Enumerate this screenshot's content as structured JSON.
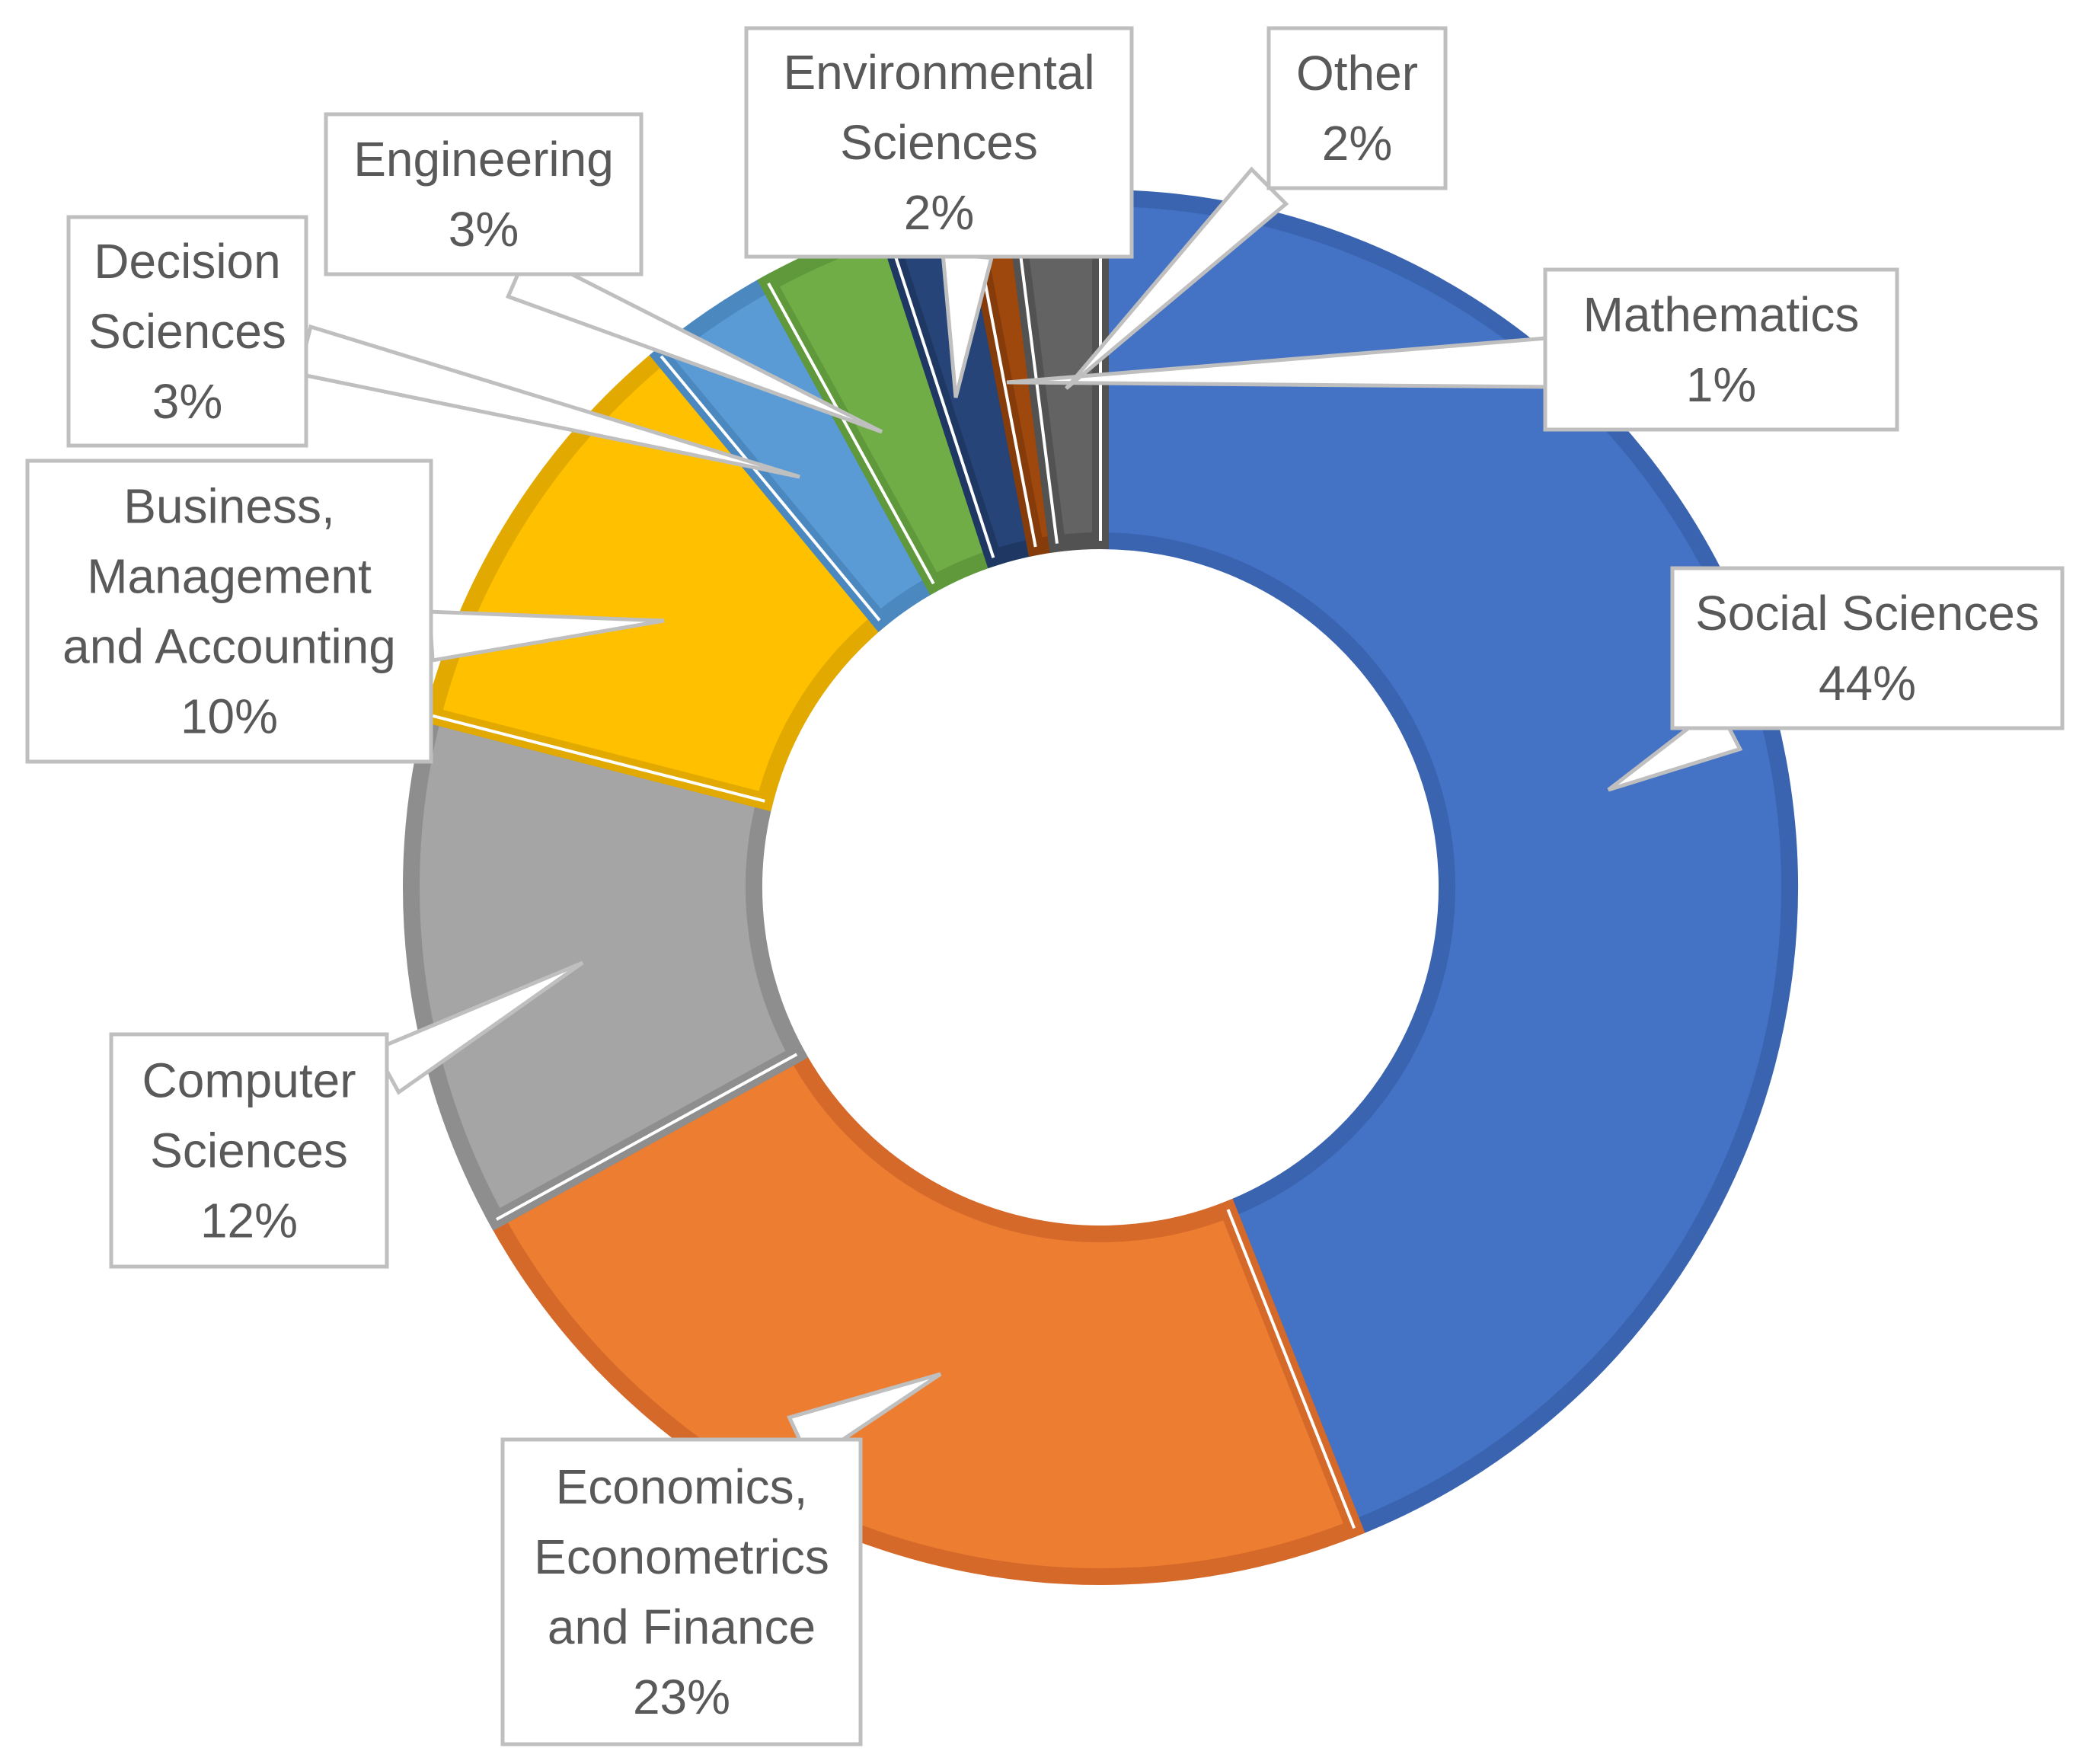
{
  "chart_data": {
    "type": "pie",
    "subtype": "doughnut",
    "title": "",
    "legend": "none",
    "slices": [
      {
        "label": "Social Sciences",
        "value": 44,
        "percent_label": "44%",
        "color": "#4472C4",
        "border": "#3A64B0"
      },
      {
        "label": "Economics, Econometrics and Finance",
        "value": 23,
        "percent_label": "23%",
        "color": "#ED7D31",
        "border": "#D5692A"
      },
      {
        "label": "Computer Sciences",
        "value": 12,
        "percent_label": "12%",
        "color": "#A5A5A5",
        "border": "#8E8E8E"
      },
      {
        "label": "Business, Management and Accounting",
        "value": 10,
        "percent_label": "10%",
        "color": "#FFC000",
        "border": "#E2A900"
      },
      {
        "label": "Decision Sciences",
        "value": 3,
        "percent_label": "3%",
        "color": "#5B9BD5",
        "border": "#4C88C0"
      },
      {
        "label": "Engineering",
        "value": 3,
        "percent_label": "3%",
        "color": "#70AD47",
        "border": "#5F993B"
      },
      {
        "label": "Environmental Sciences",
        "value": 2,
        "percent_label": "2%",
        "color": "#264478",
        "border": "#1E3863"
      },
      {
        "label": "Mathematics",
        "value": 1,
        "percent_label": "1%",
        "color": "#9E480E",
        "border": "#863C0A"
      },
      {
        "label": "Other",
        "value": 2,
        "percent_label": "2%",
        "color": "#636363",
        "border": "#525252"
      }
    ]
  },
  "labels": {
    "social_sciences": [
      "Social Sciences",
      "44%"
    ],
    "economics": [
      "Economics,",
      "Econometrics",
      "and Finance",
      "23%"
    ],
    "computer_sciences": [
      "Computer",
      "Sciences",
      "12%"
    ],
    "business": [
      "Business,",
      "Management",
      "and Accounting",
      "10%"
    ],
    "decision_sciences": [
      "Decision",
      "Sciences",
      "3%"
    ],
    "engineering": [
      "Engineering",
      "3%"
    ],
    "environmental_sciences": [
      "Environmental",
      "Sciences",
      "2%"
    ],
    "other": [
      "Other",
      "2%"
    ],
    "mathematics": [
      "Mathematics",
      "1%"
    ]
  }
}
